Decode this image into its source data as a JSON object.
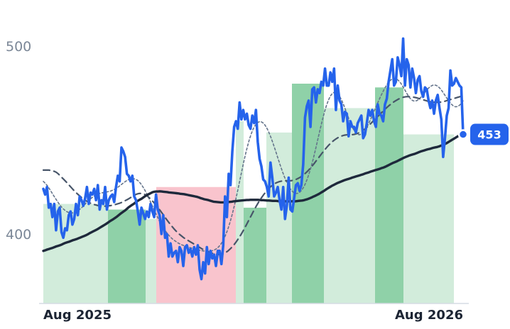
{
  "chart_data": {
    "type": "line",
    "title": "",
    "xlabel": "",
    "ylabel": "",
    "x_ticks": [
      "Aug 2025",
      "Aug 2026"
    ],
    "y_ticks": [
      400,
      500
    ],
    "ylim": [
      363,
      524
    ],
    "grid": false,
    "legend": "none",
    "last_value_label": "453",
    "colors": {
      "price": "#2563eb",
      "ma_long": "#1e293b",
      "ma_mid": "#475569",
      "ma_short": "#64748b",
      "up_dark": "#8fd1a8",
      "up_light": "#d2ecdb",
      "down": "#f9c4cd"
    },
    "series": [
      {
        "role": "price",
        "values": [
          424,
          421,
          425,
          414,
          416,
          409,
          416,
          402,
          412,
          414,
          401,
          398,
          403,
          402,
          410,
          412,
          405,
          408,
          416,
          410,
          420,
          418,
          415,
          419,
          425,
          416,
          422,
          421,
          424,
          418,
          426,
          413,
          418,
          416,
          425,
          413,
          418,
          420,
          421,
          417,
          425,
          431,
          428,
          446,
          444,
          441,
          432,
          431,
          428,
          431,
          420,
          418,
          412,
          405,
          414,
          411,
          408,
          412,
          409,
          416,
          412,
          409,
          421,
          413,
          410,
          400,
          410,
          398,
          400,
          388,
          395,
          388,
          390,
          391,
          385,
          393,
          391,
          383,
          393,
          394,
          390,
          392,
          388,
          393,
          389,
          394,
          381,
          376,
          385,
          379,
          393,
          384,
          391,
          387,
          389,
          383,
          391,
          391,
          384,
          394,
          420,
          409,
          432,
          426,
          444,
          457,
          460,
          456,
          470,
          461,
          466,
          461,
          464,
          458,
          456,
          463,
          459,
          466,
          449,
          440,
          436,
          429,
          428,
          425,
          420,
          438,
          430,
          420,
          422,
          425,
          418,
          413,
          425,
          408,
          415,
          430,
          413,
          412,
          419,
          426,
          427,
          423,
          426,
          437,
          462,
          468,
          471,
          457,
          477,
          478,
          470,
          477,
          475,
          481,
          479,
          488,
          479,
          479,
          486,
          481,
          488,
          466,
          479,
          471,
          469,
          460,
          465,
          464,
          452,
          460,
          457,
          457,
          454,
          459,
          461,
          463,
          451,
          453,
          459,
          466,
          463,
          466,
          460,
          457,
          469,
          464,
          463,
          460,
          469,
          472,
          481,
          487,
          493,
          479,
          481,
          494,
          490,
          484,
          504,
          479,
          493,
          490,
          478,
          488,
          483,
          475,
          482,
          484,
          476,
          473,
          478,
          477,
          471,
          467,
          471,
          464,
          471,
          474,
          467,
          461,
          441,
          451,
          463,
          467,
          487,
          479,
          480,
          483,
          481,
          479,
          478,
          453
        ]
      },
      {
        "role": "ma_long",
        "values": [
          391,
          391.3,
          391.7,
          392,
          392.3,
          392.6,
          393,
          393.4,
          393.7,
          394,
          394.4,
          394.9,
          395.3,
          395.6,
          395.9,
          396.3,
          396.7,
          397,
          397.3,
          397.7,
          398.1,
          398.5,
          398.9,
          399.3,
          399.8,
          400.4,
          400.9,
          401.4,
          401.9,
          402.4,
          403,
          403.6,
          404.2,
          404.8,
          405.4,
          406.1,
          406.8,
          407.4,
          408,
          408.7,
          409.4,
          410.2,
          411,
          411.7,
          412.4,
          413.2,
          414.1,
          414.8,
          415.5,
          416.1,
          416.9,
          417.6,
          418.2,
          418.7,
          419.4,
          420.1,
          420.7,
          421.2,
          421.7,
          422.2,
          422.5,
          422.6,
          422.6,
          422.7,
          422.6,
          422.5,
          422.4,
          422.3,
          422.1,
          422,
          421.9,
          421.8,
          421.7,
          421.6,
          421.4,
          421.3,
          421.2,
          421,
          420.8,
          420.6,
          420.4,
          420.2,
          420,
          419.8,
          419.5,
          419.1,
          418.8,
          418.5,
          418.3,
          418.1,
          417.8,
          417.5,
          417.2,
          417.1,
          417,
          416.9,
          416.8,
          416.8,
          416.8,
          416.9,
          417,
          417.1,
          417.2,
          417.4,
          417.5,
          417.6,
          417.7,
          417.8,
          417.9,
          418,
          418.1,
          418.1,
          418.2,
          418.2,
          418.2,
          418.2,
          418.2,
          418.1,
          418,
          418,
          417.9,
          417.8,
          417.8,
          417.7,
          417.6,
          417.6,
          417.6,
          417.5,
          417.5,
          417.5,
          417.5,
          417.4,
          417.4,
          417.4,
          417.4,
          417.4,
          417.4,
          417.5,
          417.6,
          417.7,
          417.8,
          418,
          418.3,
          418.6,
          419,
          419.4,
          419.9,
          420.3,
          420.8,
          421.3,
          421.9,
          422.5,
          423.1,
          423.8,
          424.4,
          425,
          425.6,
          426.1,
          426.6,
          427.1,
          427.5,
          427.9,
          428.3,
          428.7,
          429,
          429.3,
          429.6,
          430,
          430.3,
          430.6,
          430.9,
          431.2,
          431.5,
          431.8,
          432.2,
          432.5,
          432.8,
          433.2,
          433.5,
          433.8,
          434.1,
          434.4,
          434.7,
          435.1,
          435.4,
          435.8,
          436.3,
          436.8,
          437.3,
          437.8,
          438.2,
          438.6,
          439.1,
          439.6,
          440.1,
          440.6,
          441,
          441.4,
          441.8,
          442.1,
          442.4,
          442.7,
          443.1,
          443.5,
          443.9,
          444.2,
          444.5,
          444.8,
          445.1,
          445.3,
          445.6,
          445.9,
          446.1,
          446.3,
          446.6,
          447,
          447.4,
          447.8,
          448.3,
          448.9,
          449.5,
          450.1,
          450.7,
          451.3,
          451.9,
          452.5,
          453,
          453.4
        ]
      },
      {
        "role": "ma_mid",
        "values": [
          434,
          434,
          434,
          434,
          433.8,
          433.6,
          433.3,
          432.8,
          432,
          431,
          430,
          429,
          428,
          426.9,
          425.8,
          424.7,
          423.6,
          422.5,
          421.6,
          420.7,
          419.8,
          419,
          418.3,
          417.6,
          417,
          416.5,
          416.1,
          415.7,
          415.5,
          415.2,
          415,
          414.9,
          414.8,
          414.8,
          414.9,
          415,
          415.1,
          415.3,
          415.5,
          415.8,
          416.1,
          416.4,
          416.8,
          417.3,
          417.8,
          418.3,
          418.9,
          419.5,
          420.1,
          420.7,
          421.2,
          421.5,
          421.6,
          421.5,
          421.2,
          420.7,
          420,
          419.1,
          418.1,
          417,
          415.8,
          414.6,
          413.3,
          412,
          410.6,
          409.2,
          407.8,
          406.5,
          405.2,
          404,
          402.8,
          401.7,
          400.7,
          399.8,
          399,
          398.2,
          397.5,
          396.9,
          396.3,
          395.7,
          395.1,
          394.5,
          393.9,
          393.3,
          392.7,
          392.1,
          391.6,
          391.1,
          390.7,
          390.3,
          389.9,
          389.6,
          389.4,
          389.2,
          389.1,
          389.1,
          389.3,
          389.7,
          390.3,
          391,
          391.9,
          392.9,
          394,
          395.3,
          396.7,
          398.2,
          399.8,
          401.5,
          403.3,
          405.2,
          407.1,
          409,
          410.9,
          412.8,
          414.6,
          416.3,
          417.9,
          419.4,
          420.8,
          422.1,
          423.3,
          424.4,
          425.3,
          426.1,
          426.8,
          427.3,
          427.7,
          428,
          428.2,
          428.3,
          428.3,
          428.3,
          428.3,
          428.4,
          428.6,
          428.9,
          429.3,
          429.8,
          430.4,
          431.1,
          431.9,
          432.8,
          433.8,
          434.9,
          436.1,
          437.3,
          438.6,
          439.9,
          441.2,
          442.5,
          443.8,
          445,
          446.2,
          447.3,
          448.3,
          449.2,
          450,
          450.7,
          451.3,
          451.8,
          452.2,
          452.5,
          452.7,
          452.8,
          452.8,
          452.8,
          452.9,
          453.1,
          453.4,
          453.8,
          454.3,
          454.9,
          455.6,
          456.4,
          457.3,
          458.3,
          459.3,
          460.3,
          461.3,
          462.3,
          463.3,
          464.3,
          465.3,
          466.3,
          467.2,
          468.1,
          468.9,
          469.7,
          470.4,
          471,
          471.6,
          472.1,
          472.5,
          472.8,
          473,
          473.1,
          473.1,
          473,
          472.9,
          472.7,
          472.5,
          472.2,
          471.9,
          471.6,
          471.3,
          471,
          470.7,
          470.5,
          470.3,
          470.2,
          470.1,
          470.1,
          470.1,
          470.2,
          470.4,
          470.6,
          470.9,
          471.2,
          471.5,
          471.8,
          472.1,
          472.4,
          472.7,
          473,
          473.3,
          473.5
        ]
      },
      {
        "role": "ma_short",
        "values": [
          428,
          427,
          425.8,
          424.3,
          422.7,
          421,
          419.4,
          417.8,
          416.3,
          414.9,
          413.7,
          412.8,
          412,
          411.5,
          411.2,
          411.2,
          411.4,
          411.8,
          412.4,
          413.2,
          414.1,
          415.1,
          416.2,
          417.2,
          418.2,
          419.1,
          419.9,
          420.6,
          421.1,
          421.5,
          421.8,
          422,
          422.2,
          422.4,
          422.6,
          422.9,
          423.3,
          423.8,
          424.4,
          425.1,
          425.9,
          426.7,
          427.5,
          428.2,
          428.8,
          429.2,
          429.4,
          429.4,
          429.1,
          428.5,
          427.5,
          426.2,
          424.6,
          422.8,
          420.8,
          418.6,
          416.3,
          414,
          411.8,
          409.6,
          407.5,
          405.6,
          403.8,
          402.2,
          400.8,
          399.5,
          398.4,
          397.4,
          396.6,
          395.9,
          395.2,
          394.7,
          394.2,
          393.8,
          393.4,
          393.1,
          392.8,
          392.5,
          392.2,
          391.9,
          391.6,
          391.4,
          391.2,
          391,
          390.9,
          390.8,
          390.8,
          390.9,
          391.2,
          391.6,
          392.2,
          393.1,
          394.3,
          395.9,
          397.9,
          400.3,
          403.1,
          406.4,
          410.1,
          414.2,
          418.7,
          423.4,
          428.3,
          433.2,
          438,
          442.5,
          446.6,
          450.3,
          453.4,
          455.9,
          457.8,
          459.1,
          459.7,
          459.8,
          459.2,
          458.1,
          456.5,
          454.4,
          451.9,
          449.1,
          446.1,
          443,
          439.8,
          436.7,
          433.7,
          430.9,
          428.4,
          426.2,
          424.4,
          423,
          422.1,
          421.6,
          421.6,
          422.1,
          423.1,
          424.6,
          426.6,
          429.1,
          432.1,
          435.5,
          439.3,
          443.5,
          447.9,
          452.4,
          456.8,
          461,
          464.9,
          468.3,
          471.1,
          473.3,
          474.7,
          475.4,
          475.3,
          474.5,
          473,
          471,
          468.6,
          465.9,
          463.1,
          460.4,
          457.9,
          455.8,
          454.2,
          453.2,
          452.8,
          453.1,
          453.9,
          455.2,
          456.9,
          458.9,
          461.1,
          463.4,
          465.8,
          468.2,
          470.6,
          472.9,
          475,
          477,
          478.8,
          480.4,
          481.6,
          482.4,
          482.8,
          482.7,
          482.1,
          481.1,
          479.7,
          478,
          476.2,
          474.4,
          472.8,
          471.6,
          470.9,
          470.7,
          471,
          471.7,
          472.7,
          473.9,
          475.2,
          476.5,
          477.6,
          478.5,
          479.1,
          479.3,
          479.1,
          478.5,
          477.5,
          476.2,
          474.7,
          473.1,
          471.6,
          470.2,
          469,
          468.1,
          467.7,
          467.8,
          468.4,
          469.5,
          470.9
        ]
      }
    ],
    "background_bands": [
      {
        "tone": "up_light",
        "value": 416
      },
      {
        "tone": "up_dark",
        "value": 413
      },
      {
        "tone": "up_light",
        "value": 408
      },
      {
        "tone": "down",
        "value": 425
      },
      {
        "tone": "up_light",
        "value": 460
      },
      {
        "tone": "up_dark",
        "value": 414
      },
      {
        "tone": "up_light",
        "value": 454
      },
      {
        "tone": "up_dark",
        "value": 480
      },
      {
        "tone": "up_light",
        "value": 467
      },
      {
        "tone": "up_dark",
        "value": 478
      },
      {
        "tone": "up_light",
        "value": 453
      }
    ]
  }
}
